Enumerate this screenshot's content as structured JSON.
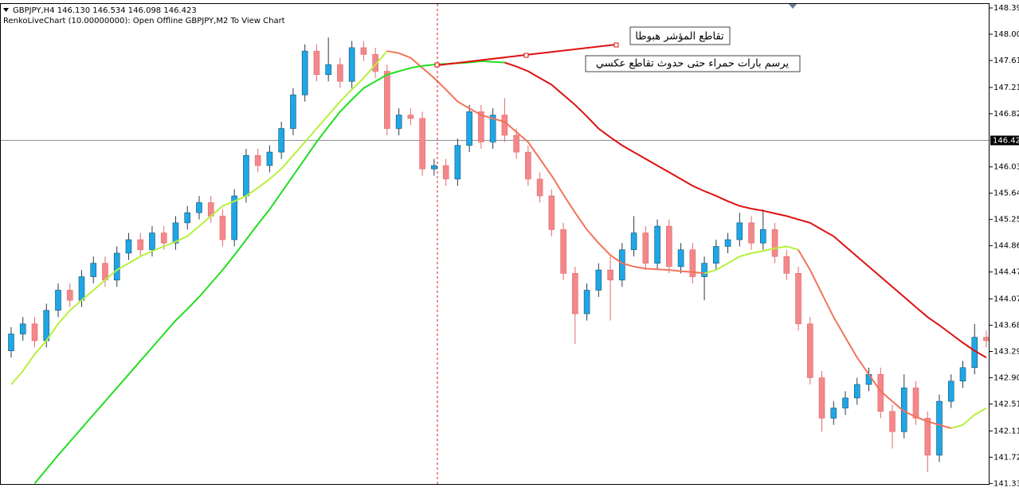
{
  "chart_data": {
    "type": "candlestick",
    "title": "GBPJPY,H4  146.130 146.534 146.098 146.423",
    "subtitle": "RenkoLiveChart (10.00000000): Open Offline GBPJPY,M2 To View Chart",
    "annotations": [
      "تقاطع المؤشر هبوطا",
      "يرسم بارات حمراء حتى حدوث تقاطع عكسي"
    ],
    "up_color": "#1ea7e6",
    "down_color": "#f4878a",
    "ylim": [
      141.322,
      148.461
    ],
    "yticks": [
      {
        "value": 148.39,
        "label": "148.390"
      },
      {
        "value": 148.0,
        "label": "148.000"
      },
      {
        "value": 147.61,
        "label": "147.610"
      },
      {
        "value": 147.21,
        "label": "147.210"
      },
      {
        "value": 146.82,
        "label": "146.820"
      },
      {
        "value": 146.03,
        "label": "146.030"
      },
      {
        "value": 145.64,
        "label": "145.640"
      },
      {
        "value": 145.25,
        "label": "145.250"
      },
      {
        "value": 144.86,
        "label": "144.860"
      },
      {
        "value": 144.47,
        "label": "144.470"
      },
      {
        "value": 144.07,
        "label": "144.070"
      },
      {
        "value": 143.68,
        "label": "143.680"
      },
      {
        "value": 143.29,
        "label": "143.290"
      },
      {
        "value": 142.9,
        "label": "142.900"
      },
      {
        "value": 142.51,
        "label": "142.510"
      },
      {
        "value": 142.11,
        "label": "142.110"
      },
      {
        "value": 141.72,
        "label": "141.720"
      },
      {
        "value": 141.33,
        "label": "141.330"
      }
    ],
    "current_price": 146.423,
    "open": [
      143.3,
      143.55,
      143.7,
      143.45,
      143.9,
      144.2,
      144.05,
      144.4,
      144.6,
      144.35,
      144.75,
      144.95,
      144.8,
      145.05,
      144.9,
      145.2,
      145.35,
      145.5,
      145.3,
      144.95,
      145.6,
      146.2,
      146.05,
      146.25,
      146.6,
      147.1,
      147.75,
      147.4,
      147.55,
      147.3,
      147.8,
      147.7,
      147.45,
      146.6,
      146.8,
      146.75,
      146.0,
      146.05,
      145.85,
      146.35,
      146.85,
      146.4,
      146.8,
      146.5,
      146.25,
      145.85,
      145.6,
      145.1,
      144.45,
      143.85,
      144.2,
      144.5,
      144.35,
      144.8,
      145.05,
      144.6,
      145.15,
      144.55,
      144.8,
      144.4,
      144.6,
      144.85,
      144.95,
      145.2,
      144.9,
      145.1,
      144.7,
      144.45,
      143.7,
      142.9,
      142.3,
      142.45,
      142.6,
      142.8,
      142.95,
      142.4,
      142.1,
      142.75,
      142.3,
      141.75,
      142.55,
      142.85,
      143.05,
      143.5
    ],
    "high": [
      143.65,
      143.8,
      143.8,
      144.0,
      144.3,
      144.3,
      144.5,
      144.7,
      144.7,
      144.85,
      145.05,
      145.05,
      145.15,
      145.15,
      145.3,
      145.45,
      145.6,
      145.6,
      145.4,
      145.7,
      146.3,
      146.3,
      146.35,
      146.7,
      147.2,
      147.85,
      147.85,
      147.95,
      147.65,
      147.9,
      147.9,
      147.8,
      147.55,
      146.9,
      146.9,
      146.85,
      146.15,
      146.15,
      146.45,
      146.95,
      146.95,
      146.9,
      147.05,
      146.6,
      146.35,
      145.95,
      145.7,
      145.2,
      144.55,
      144.3,
      144.6,
      144.7,
      144.9,
      145.3,
      145.15,
      145.25,
      145.25,
      144.9,
      144.9,
      144.7,
      144.95,
      145.05,
      145.35,
      145.3,
      145.4,
      145.2,
      144.8,
      144.55,
      143.8,
      143.0,
      142.55,
      142.7,
      142.9,
      143.05,
      143.05,
      142.5,
      142.95,
      142.85,
      142.4,
      142.65,
      142.95,
      143.15,
      143.7,
      143.6
    ],
    "low": [
      143.2,
      143.45,
      143.35,
      143.35,
      143.8,
      143.95,
      143.95,
      144.3,
      144.25,
      144.25,
      144.65,
      144.7,
      144.7,
      144.8,
      144.8,
      145.1,
      145.25,
      145.2,
      144.85,
      144.85,
      145.5,
      145.95,
      145.95,
      146.15,
      146.5,
      147.0,
      147.3,
      147.3,
      147.2,
      147.2,
      147.6,
      147.35,
      146.5,
      146.5,
      146.65,
      145.9,
      145.9,
      145.75,
      145.75,
      146.25,
      146.3,
      146.3,
      146.4,
      146.15,
      145.75,
      145.5,
      145.0,
      144.35,
      143.4,
      143.75,
      144.1,
      143.75,
      144.25,
      144.7,
      144.5,
      144.5,
      144.45,
      144.45,
      144.3,
      144.05,
      144.5,
      144.75,
      144.85,
      144.8,
      144.8,
      144.6,
      144.35,
      143.6,
      142.8,
      142.1,
      142.2,
      142.35,
      142.5,
      142.7,
      142.3,
      141.85,
      142.0,
      142.2,
      141.5,
      141.65,
      142.45,
      142.75,
      142.95,
      143.35
    ],
    "close": [
      143.55,
      143.7,
      143.45,
      143.9,
      144.2,
      144.05,
      144.4,
      144.6,
      144.35,
      144.75,
      144.95,
      144.8,
      145.05,
      144.9,
      145.2,
      145.35,
      145.5,
      145.3,
      144.95,
      145.6,
      146.2,
      146.05,
      146.25,
      146.6,
      147.1,
      147.75,
      147.4,
      147.55,
      147.3,
      147.8,
      147.7,
      147.45,
      146.6,
      146.8,
      146.75,
      146.0,
      146.05,
      145.85,
      146.35,
      146.85,
      146.4,
      146.8,
      146.5,
      146.25,
      145.85,
      145.6,
      145.1,
      144.45,
      143.85,
      144.2,
      144.5,
      144.35,
      144.8,
      145.05,
      144.6,
      145.15,
      144.55,
      144.8,
      144.4,
      144.6,
      144.85,
      144.95,
      145.2,
      144.9,
      145.1,
      144.7,
      144.45,
      143.7,
      142.9,
      142.3,
      142.45,
      142.6,
      142.8,
      142.95,
      142.4,
      142.1,
      142.75,
      142.3,
      141.75,
      142.55,
      142.85,
      143.05,
      143.5,
      143.45
    ],
    "series": [
      {
        "color": "#b8f03c",
        "values": [
          142.8,
          143.0,
          143.25,
          143.45,
          143.7,
          143.9,
          144.05,
          144.2,
          144.35,
          144.5,
          144.6,
          144.7,
          144.78,
          144.85,
          144.92,
          145.0,
          145.15,
          145.3,
          145.45,
          145.52,
          145.6,
          145.72,
          145.85,
          146.0,
          146.2,
          146.4,
          146.6,
          146.8,
          147.0,
          147.18,
          147.35,
          147.55,
          147.75,
          null,
          null,
          null,
          null,
          null,
          null,
          null,
          null,
          null,
          null,
          null,
          null,
          null,
          null,
          null,
          null,
          null,
          null,
          null,
          null,
          null,
          null,
          null,
          null,
          null,
          null,
          144.45,
          144.5,
          144.6,
          144.7,
          144.75,
          144.78,
          144.82,
          144.85,
          144.8,
          null,
          null,
          null,
          null,
          null,
          null,
          null,
          null,
          null,
          null,
          null,
          null,
          142.15,
          142.2,
          142.35,
          142.45
        ]
      },
      {
        "color": "#f2735a",
        "values": [
          null,
          null,
          null,
          null,
          null,
          null,
          null,
          null,
          null,
          null,
          null,
          null,
          null,
          null,
          null,
          null,
          null,
          null,
          null,
          null,
          null,
          null,
          null,
          null,
          null,
          null,
          null,
          null,
          null,
          null,
          null,
          null,
          147.75,
          147.72,
          147.65,
          147.5,
          147.35,
          147.18,
          147.0,
          146.9,
          146.8,
          146.75,
          146.7,
          146.55,
          146.4,
          146.15,
          145.9,
          145.62,
          145.35,
          145.1,
          144.9,
          144.72,
          144.6,
          144.55,
          144.52,
          144.51,
          144.5,
          144.48,
          144.47,
          144.45,
          null,
          null,
          null,
          null,
          null,
          null,
          null,
          144.8,
          144.5,
          144.15,
          143.8,
          143.5,
          143.2,
          142.95,
          142.7,
          142.55,
          142.4,
          142.32,
          142.25,
          142.2,
          142.15,
          null,
          null,
          null
        ]
      },
      {
        "color": "#22dd22",
        "values": [
          null,
          null,
          141.33,
          141.54,
          141.75,
          141.95,
          142.15,
          142.35,
          142.55,
          142.75,
          142.95,
          143.15,
          143.35,
          143.55,
          143.75,
          143.92,
          144.1,
          144.3,
          144.5,
          144.72,
          144.95,
          145.18,
          145.4,
          145.65,
          145.9,
          146.15,
          146.4,
          146.63,
          146.85,
          147.03,
          147.2,
          147.3,
          147.4,
          147.45,
          147.5,
          147.53,
          147.55,
          147.56,
          147.57,
          147.58,
          147.6,
          147.59,
          147.58,
          null,
          null,
          null,
          null,
          null,
          null,
          null,
          null,
          null,
          null,
          null,
          null,
          null,
          null,
          null,
          null,
          null,
          null,
          null,
          null,
          null,
          null,
          null,
          null,
          null,
          null,
          null,
          null,
          null,
          null,
          null,
          null,
          null,
          null,
          null,
          null,
          null,
          null,
          null,
          null,
          null
        ]
      },
      {
        "color": "#dd1111",
        "values": [
          null,
          null,
          null,
          null,
          null,
          null,
          null,
          null,
          null,
          null,
          null,
          null,
          null,
          null,
          null,
          null,
          null,
          null,
          null,
          null,
          null,
          null,
          null,
          null,
          null,
          null,
          null,
          null,
          null,
          null,
          null,
          null,
          null,
          null,
          null,
          null,
          null,
          null,
          null,
          null,
          null,
          null,
          147.58,
          147.52,
          147.45,
          147.35,
          147.25,
          147.1,
          146.95,
          146.78,
          146.6,
          146.47,
          146.35,
          146.25,
          146.15,
          146.05,
          145.95,
          145.85,
          145.75,
          145.67,
          145.6,
          145.52,
          145.45,
          145.41,
          145.38,
          145.34,
          145.3,
          145.25,
          145.2,
          145.1,
          145.0,
          144.85,
          144.7,
          144.55,
          144.4,
          144.25,
          144.1,
          143.95,
          143.8,
          143.68,
          143.55,
          143.42,
          143.3,
          143.2
        ]
      }
    ]
  }
}
